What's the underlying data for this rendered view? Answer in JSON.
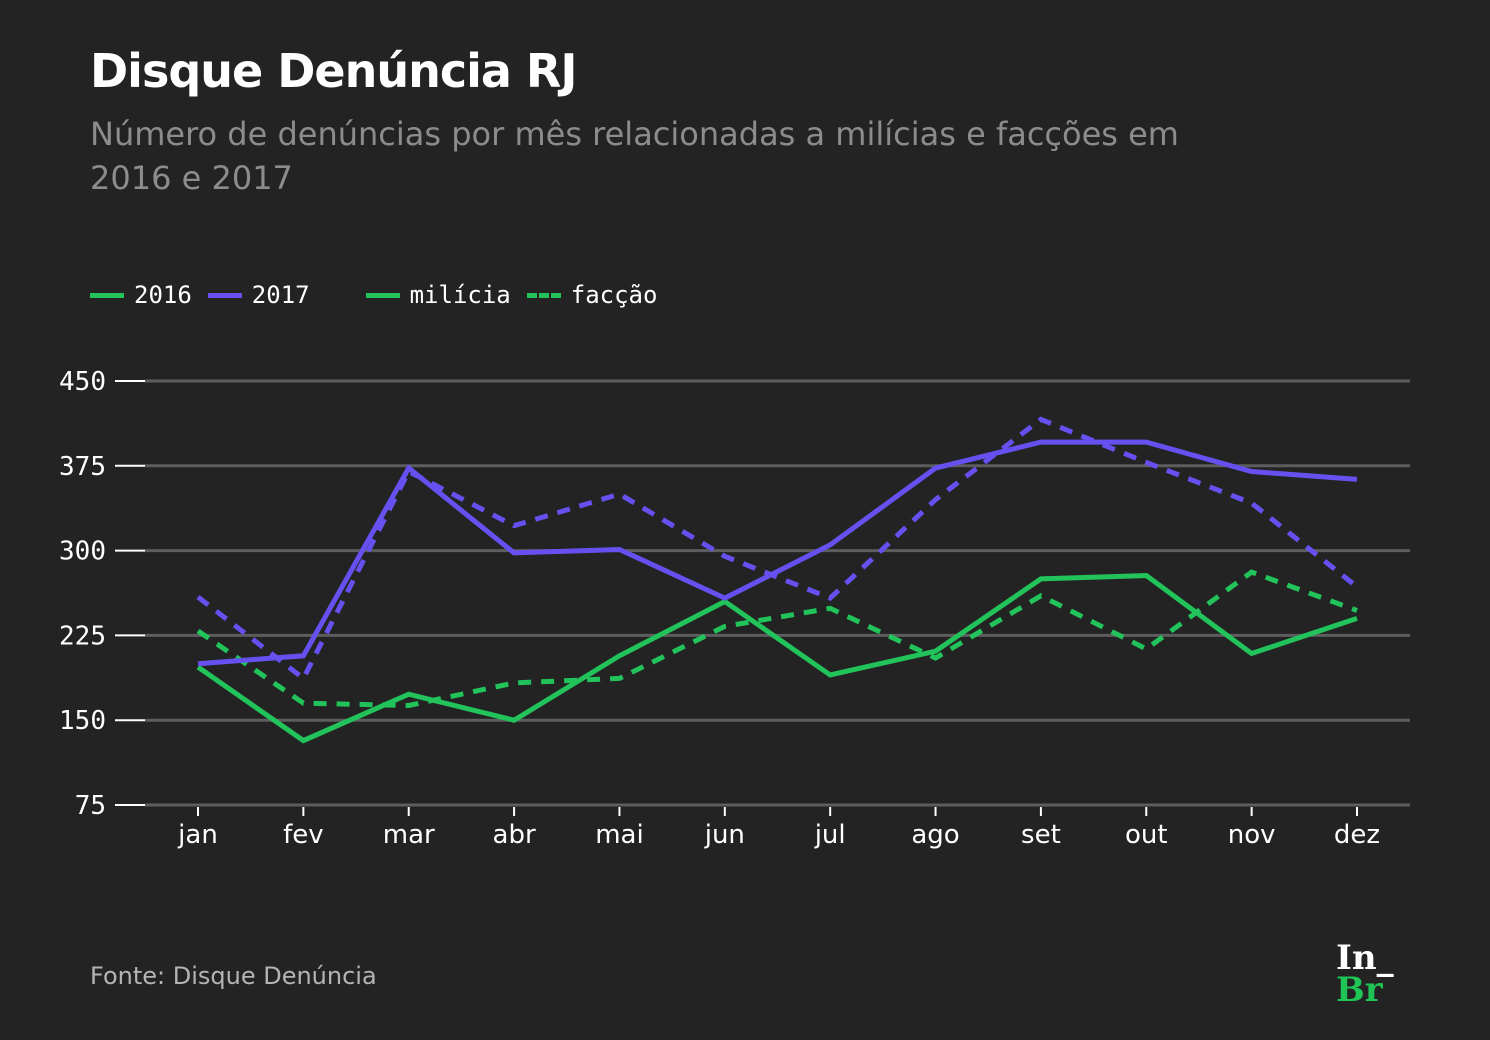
{
  "header": {
    "title": "Disque Denúncia RJ",
    "subtitle": "Número de denúncias por mês relacionadas a milícias e facções em 2016 e 2017"
  },
  "legend": {
    "items": [
      {
        "label": "2016",
        "color": "#21c35a",
        "style": "solid"
      },
      {
        "label": "2017",
        "color": "#6651f0",
        "style": "solid"
      },
      {
        "label": "milícia",
        "color": "#21c35a",
        "style": "solid"
      },
      {
        "label": "facção",
        "color": "#21c35a",
        "style": "dashed"
      }
    ]
  },
  "chart_data": {
    "type": "line",
    "title": "Disque Denúncia RJ",
    "subtitle": "Número de denúncias por mês relacionadas a milícias e facções em 2016 e 2017",
    "xlabel": "",
    "ylabel": "",
    "categories": [
      "jan",
      "fev",
      "mar",
      "abr",
      "mai",
      "jun",
      "jul",
      "ago",
      "set",
      "out",
      "nov",
      "dez"
    ],
    "yticks": [
      75,
      150,
      225,
      300,
      375,
      450
    ],
    "ylim": [
      75,
      450
    ],
    "grid": true,
    "legend_position": "top-left",
    "series": [
      {
        "name": "2016 milícia",
        "year": "2016",
        "kind": "milícia",
        "color": "#21c35a",
        "style": "solid",
        "values": [
          197,
          132,
          173,
          150,
          207,
          255,
          190,
          211,
          275,
          278,
          209,
          240
        ]
      },
      {
        "name": "2016 facção",
        "year": "2016",
        "kind": "facção",
        "color": "#21c35a",
        "style": "dashed",
        "values": [
          229,
          165,
          163,
          183,
          187,
          233,
          249,
          205,
          260,
          213,
          281,
          247
        ]
      },
      {
        "name": "2017 milícia",
        "year": "2017",
        "kind": "milícia",
        "color": "#6651f0",
        "style": "solid",
        "values": [
          200,
          207,
          373,
          298,
          301,
          258,
          305,
          373,
          396,
          396,
          370,
          363
        ]
      },
      {
        "name": "2017 facção",
        "year": "2017",
        "kind": "facção",
        "color": "#6651f0",
        "style": "dashed",
        "values": [
          259,
          187,
          370,
          322,
          350,
          295,
          258,
          345,
          416,
          378,
          342,
          268
        ]
      }
    ]
  },
  "footer": {
    "source": "Fonte: Disque Denúncia",
    "logo_top": "In_",
    "logo_bottom": "Br"
  }
}
